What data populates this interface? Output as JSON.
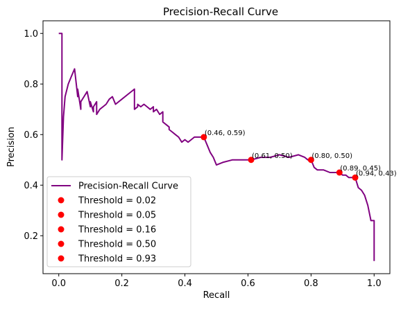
{
  "chart_data": {
    "type": "line",
    "title": "Precision-Recall Curve",
    "xlabel": "Recall",
    "ylabel": "Precision",
    "xlim": [
      -0.05,
      1.05
    ],
    "ylim": [
      0.05,
      1.05
    ],
    "xticks": [
      "0.0",
      "0.2",
      "0.4",
      "0.6",
      "0.8",
      "1.0"
    ],
    "yticks": [
      "0.2",
      "0.4",
      "0.6",
      "0.8",
      "1.0"
    ],
    "xtick_values": [
      0,
      0.2,
      0.4,
      0.6,
      0.8,
      1.0
    ],
    "ytick_values": [
      0.2,
      0.4,
      0.6,
      0.8,
      1.0
    ],
    "grid": false,
    "legend_position": "lower-left",
    "line_color": "#800080",
    "point_color": "#ff0000",
    "series": [
      {
        "name": "Precision-Recall Curve",
        "x": [
          0.0,
          0.01,
          0.01,
          0.015,
          0.02,
          0.03,
          0.04,
          0.05,
          0.06,
          0.06,
          0.07,
          0.07,
          0.08,
          0.09,
          0.1,
          0.1,
          0.11,
          0.11,
          0.12,
          0.12,
          0.13,
          0.14,
          0.15,
          0.16,
          0.17,
          0.18,
          0.2,
          0.22,
          0.24,
          0.24,
          0.25,
          0.25,
          0.26,
          0.27,
          0.28,
          0.29,
          0.3,
          0.3,
          0.31,
          0.32,
          0.33,
          0.33,
          0.34,
          0.35,
          0.35,
          0.36,
          0.37,
          0.38,
          0.39,
          0.4,
          0.41,
          0.42,
          0.43,
          0.44,
          0.45,
          0.46,
          0.47,
          0.48,
          0.49,
          0.5,
          0.52,
          0.55,
          0.58,
          0.61,
          0.64,
          0.67,
          0.7,
          0.73,
          0.76,
          0.78,
          0.79,
          0.8,
          0.81,
          0.82,
          0.84,
          0.86,
          0.88,
          0.89,
          0.9,
          0.91,
          0.92,
          0.93,
          0.94,
          0.95,
          0.96,
          0.97,
          0.98,
          0.99,
          1.0,
          1.0
        ],
        "y": [
          1.0,
          1.0,
          0.5,
          0.67,
          0.75,
          0.8,
          0.83,
          0.86,
          0.75,
          0.78,
          0.7,
          0.73,
          0.75,
          0.77,
          0.71,
          0.73,
          0.69,
          0.71,
          0.73,
          0.68,
          0.7,
          0.71,
          0.72,
          0.74,
          0.75,
          0.72,
          0.74,
          0.76,
          0.78,
          0.7,
          0.71,
          0.72,
          0.71,
          0.72,
          0.71,
          0.7,
          0.71,
          0.69,
          0.7,
          0.68,
          0.69,
          0.65,
          0.64,
          0.63,
          0.62,
          0.61,
          0.6,
          0.59,
          0.57,
          0.58,
          0.57,
          0.58,
          0.59,
          0.59,
          0.59,
          0.59,
          0.56,
          0.53,
          0.51,
          0.48,
          0.49,
          0.5,
          0.5,
          0.5,
          0.51,
          0.51,
          0.52,
          0.51,
          0.52,
          0.51,
          0.5,
          0.5,
          0.47,
          0.46,
          0.46,
          0.45,
          0.45,
          0.45,
          0.44,
          0.44,
          0.43,
          0.43,
          0.43,
          0.39,
          0.38,
          0.36,
          0.32,
          0.26,
          0.26,
          0.1
        ]
      }
    ],
    "points": [
      {
        "legend": "Threshold = 0.02",
        "x": 0.94,
        "y": 0.43,
        "label": "(0.94, 0.43)"
      },
      {
        "legend": "Threshold = 0.05",
        "x": 0.89,
        "y": 0.45,
        "label": "(0.89, 0.45)"
      },
      {
        "legend": "Threshold = 0.16",
        "x": 0.8,
        "y": 0.5,
        "label": "(0.80, 0.50)"
      },
      {
        "legend": "Threshold = 0.50",
        "x": 0.61,
        "y": 0.5,
        "label": "(0.61, 0.50)"
      },
      {
        "legend": "Threshold = 0.93",
        "x": 0.46,
        "y": 0.59,
        "label": "(0.46, 0.59)"
      }
    ]
  }
}
